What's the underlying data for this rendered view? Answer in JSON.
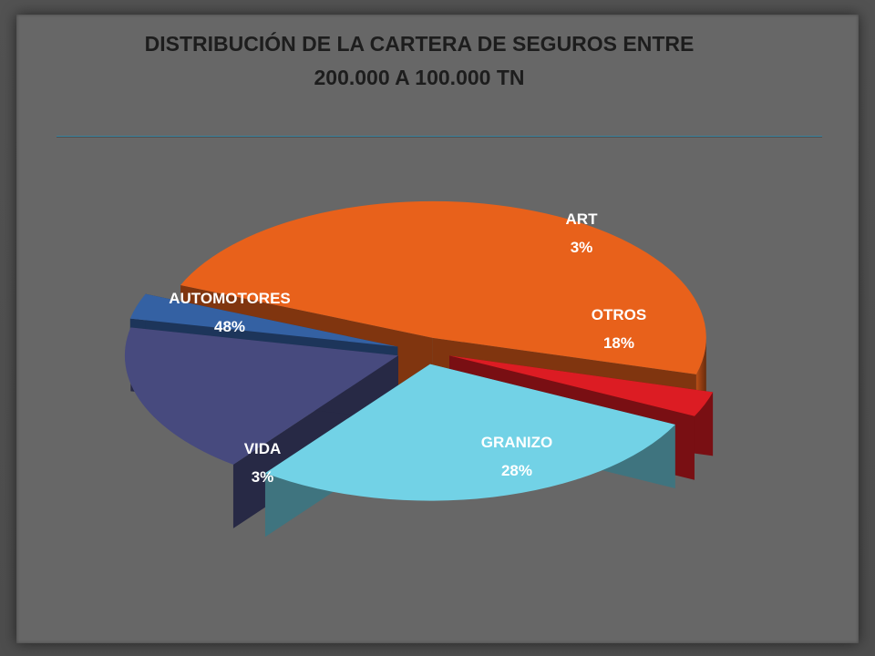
{
  "chart_data": {
    "type": "pie",
    "title": "DISTRIBUCIÓN DE LA CARTERA  DE SEGUROS ENTRE\n200.000 A 100.000 TN",
    "slices": [
      {
        "label": "AUTOMOTORES",
        "value": 48,
        "value_label": "48%",
        "color": "#e8611b"
      },
      {
        "label": "ART",
        "value": 3,
        "value_label": "3%",
        "color": "#3461a3"
      },
      {
        "label": "OTROS",
        "value": 18,
        "value_label": "18%",
        "color": "#474a7e"
      },
      {
        "label": "GRANIZO",
        "value": 28,
        "value_label": "28%",
        "color": "#72d2e6"
      },
      {
        "label": "VIDA",
        "value": 3,
        "value_label": "3%",
        "color": "#dc1c23"
      }
    ],
    "style": "3d exploded pie",
    "legend": "none (labels on slices)"
  }
}
